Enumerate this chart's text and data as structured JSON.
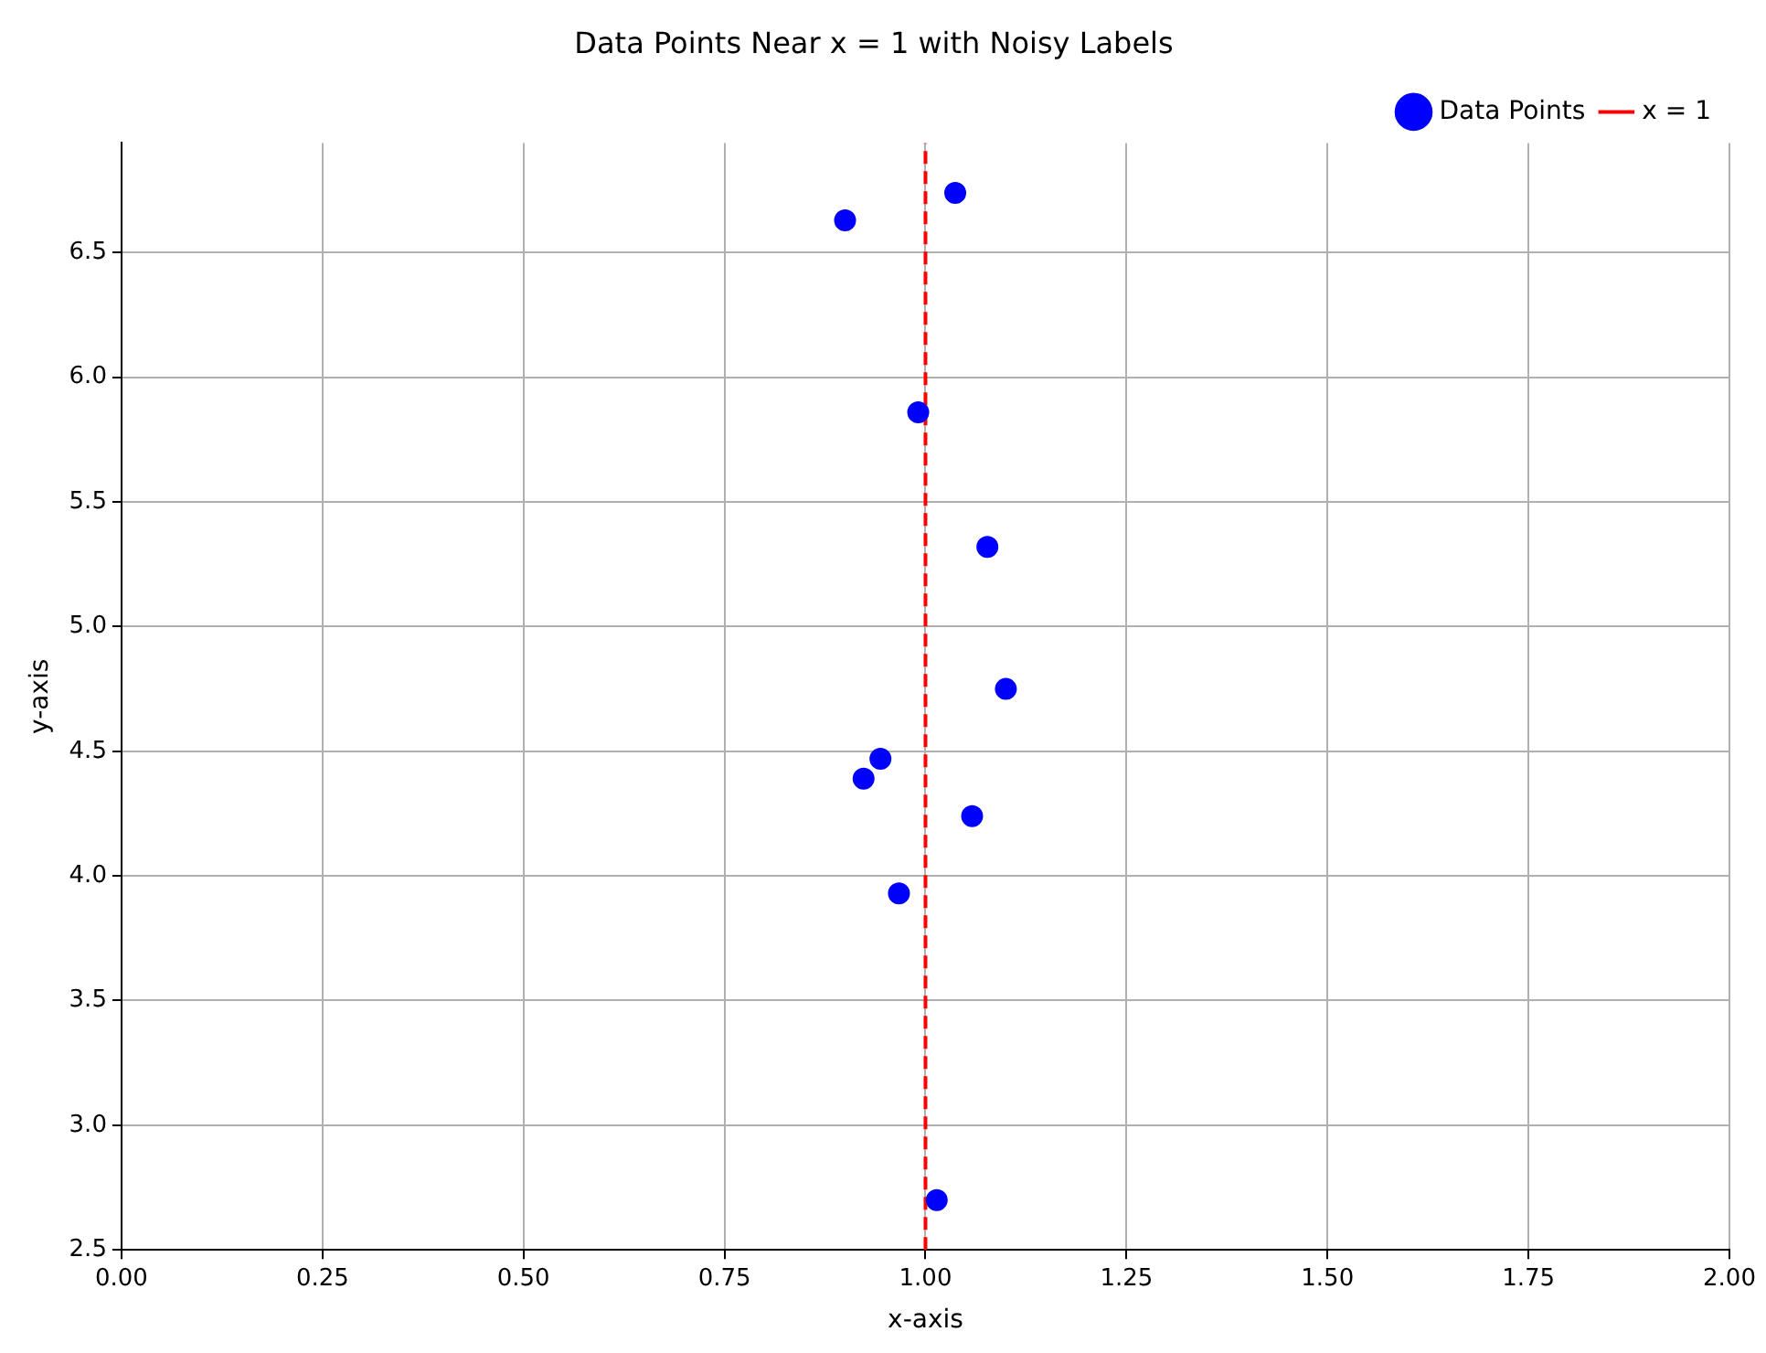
{
  "chart_data": {
    "type": "scatter",
    "title": "Data Points Near x = 1 with Noisy Labels",
    "xlabel": "x-axis",
    "ylabel": "y-axis",
    "series": [
      {
        "name": "Data Points",
        "color": "#0000ff",
        "x": [
          0.9,
          1.037,
          0.991,
          1.077,
          1.1,
          0.944,
          0.923,
          1.058,
          0.967,
          1.014
        ],
        "values": [
          6.63,
          6.74,
          5.86,
          5.32,
          4.75,
          4.47,
          4.39,
          4.24,
          3.93,
          2.7
        ]
      }
    ],
    "ref_lines": [
      {
        "axis": "x",
        "value": 1,
        "label": "x = 1",
        "color": "#ff0000",
        "line_style": "dashed"
      }
    ],
    "xlim": [
      0,
      2
    ],
    "xticks": [
      {
        "value": 0,
        "label": "0.00"
      },
      {
        "value": 0.25,
        "label": "0.25"
      },
      {
        "value": 0.5,
        "label": "0.50"
      },
      {
        "value": 0.75,
        "label": "0.75"
      },
      {
        "value": 1,
        "label": "1.00"
      },
      {
        "value": 1.25,
        "label": "1.25"
      },
      {
        "value": 1.5,
        "label": "1.50"
      },
      {
        "value": 1.75,
        "label": "1.75"
      },
      {
        "value": 2,
        "label": "2.00"
      }
    ],
    "ylim": [
      2.5,
      6.94
    ],
    "yticks": [
      {
        "value": 2.5,
        "label": "2.5"
      },
      {
        "value": 3,
        "label": "3.0"
      },
      {
        "value": 3.5,
        "label": "3.5"
      },
      {
        "value": 4,
        "label": "4.0"
      },
      {
        "value": 4.5,
        "label": "4.5"
      },
      {
        "value": 5,
        "label": "5.0"
      },
      {
        "value": 5.5,
        "label": "5.5"
      },
      {
        "value": 6,
        "label": "6.0"
      },
      {
        "value": 6.5,
        "label": "6.5"
      }
    ],
    "grid": true,
    "legend": "top right",
    "marker": "circle"
  }
}
